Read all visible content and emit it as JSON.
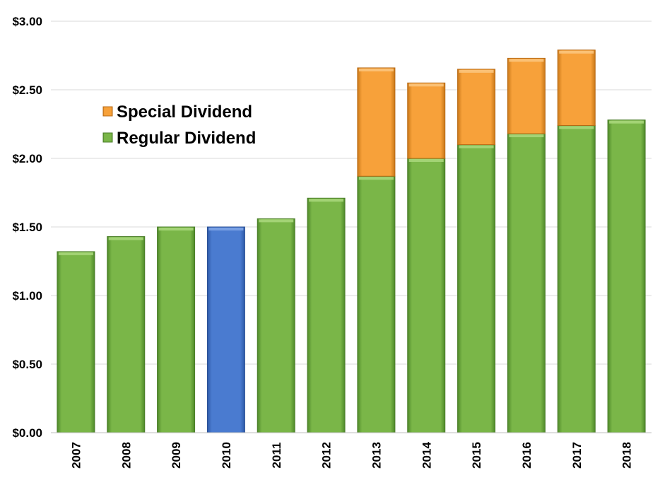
{
  "chart_data": {
    "type": "bar",
    "stacked": true,
    "title": "",
    "xlabel": "",
    "ylabel": "",
    "ylim": [
      0,
      3
    ],
    "yticks": [
      0,
      0.5,
      1,
      1.5,
      2,
      2.5,
      3
    ],
    "ytick_labels": [
      "$0.00",
      "$0.50",
      "$1.00",
      "$1.50",
      "$2.00",
      "$2.50",
      "$3.00"
    ],
    "grid": true,
    "legend_position": "upper-left",
    "categories": [
      "2007",
      "2008",
      "2009",
      "2010",
      "2011",
      "2012",
      "2013",
      "2014",
      "2015",
      "2016",
      "2017",
      "2018"
    ],
    "series": [
      {
        "name": "Regular Dividend",
        "color": "#7ab648",
        "values": [
          1.32,
          1.43,
          1.5,
          1.5,
          1.56,
          1.71,
          1.87,
          2.0,
          2.1,
          2.18,
          2.24,
          2.28
        ]
      },
      {
        "name": "Special Dividend",
        "color": "#f7a13a",
        "values": [
          0,
          0,
          0,
          0,
          0,
          0,
          0.79,
          0.55,
          0.55,
          0.55,
          0.55,
          0
        ]
      }
    ],
    "highlight": {
      "category": "2010",
      "color": "#4a7bd0"
    }
  }
}
